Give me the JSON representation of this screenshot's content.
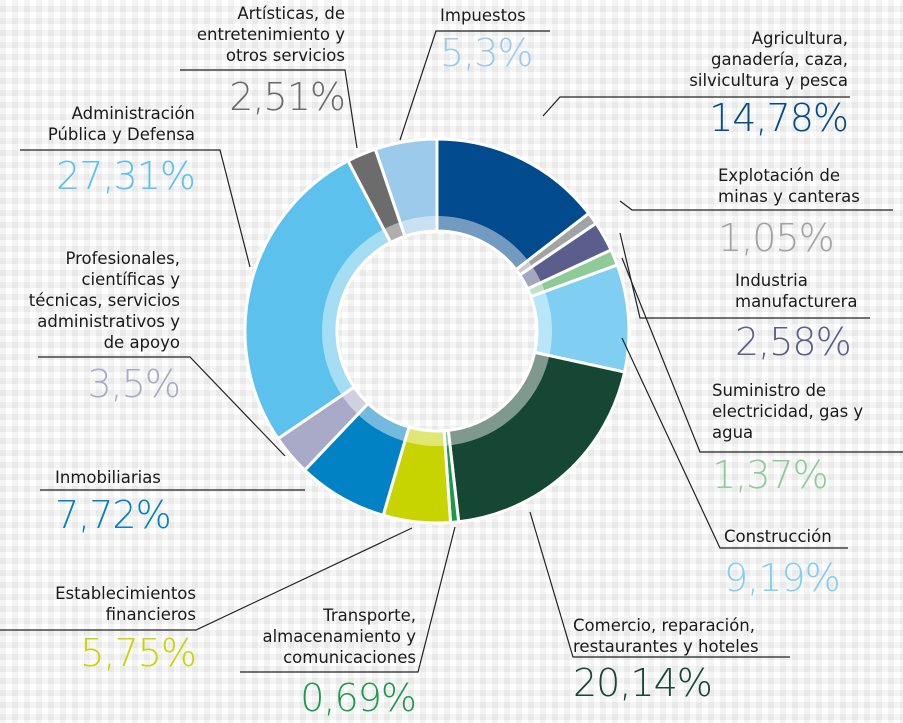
{
  "chart_data": {
    "type": "donut",
    "categories": [
      "Agricultura,\nganadería, caza,\nsilvicultura y pesca",
      "Explotación de\nminas y canteras",
      "Industria\nmanufacturera",
      "Suministro de\nelectricidad, gas y\nagua",
      "Construcción",
      "Comercio, reparación,\nrestaurantes y hoteles",
      "Transporte,\nalmacenamiento y\ncomunicaciones",
      "Establecimientos\nfinancieros",
      "Inmobiliarias",
      "Profesionales,\ncientíficas y\ntécnicas, servicios\nadministrativos y\nde apoyo",
      "Administración\nPública y Defensa",
      "Artísticas, de\nentretenimiento y\notros servicios",
      "Impuestos"
    ],
    "values": [
      14.78,
      1.05,
      2.58,
      1.37,
      9.19,
      20.14,
      0.69,
      5.75,
      7.72,
      3.5,
      27.31,
      2.51,
      5.3
    ],
    "value_labels": [
      "14,78%",
      "1,05%",
      "2,58%",
      "1,37%",
      "9,19%",
      "20,14%",
      "0,69%",
      "5,75%",
      "7,72%",
      "3,5%",
      "27,31%",
      "2,51%",
      "5,3%"
    ],
    "colors": [
      "#004a8d",
      "#a3a3a3",
      "#5b5e8c",
      "#8ecb98",
      "#80cff2",
      "#164634",
      "#1b9a4c",
      "#c8d400",
      "#0082c4",
      "#a9a9c8",
      "#5cc1ec",
      "#6c6c6c",
      "#9ccaeb"
    ]
  }
}
